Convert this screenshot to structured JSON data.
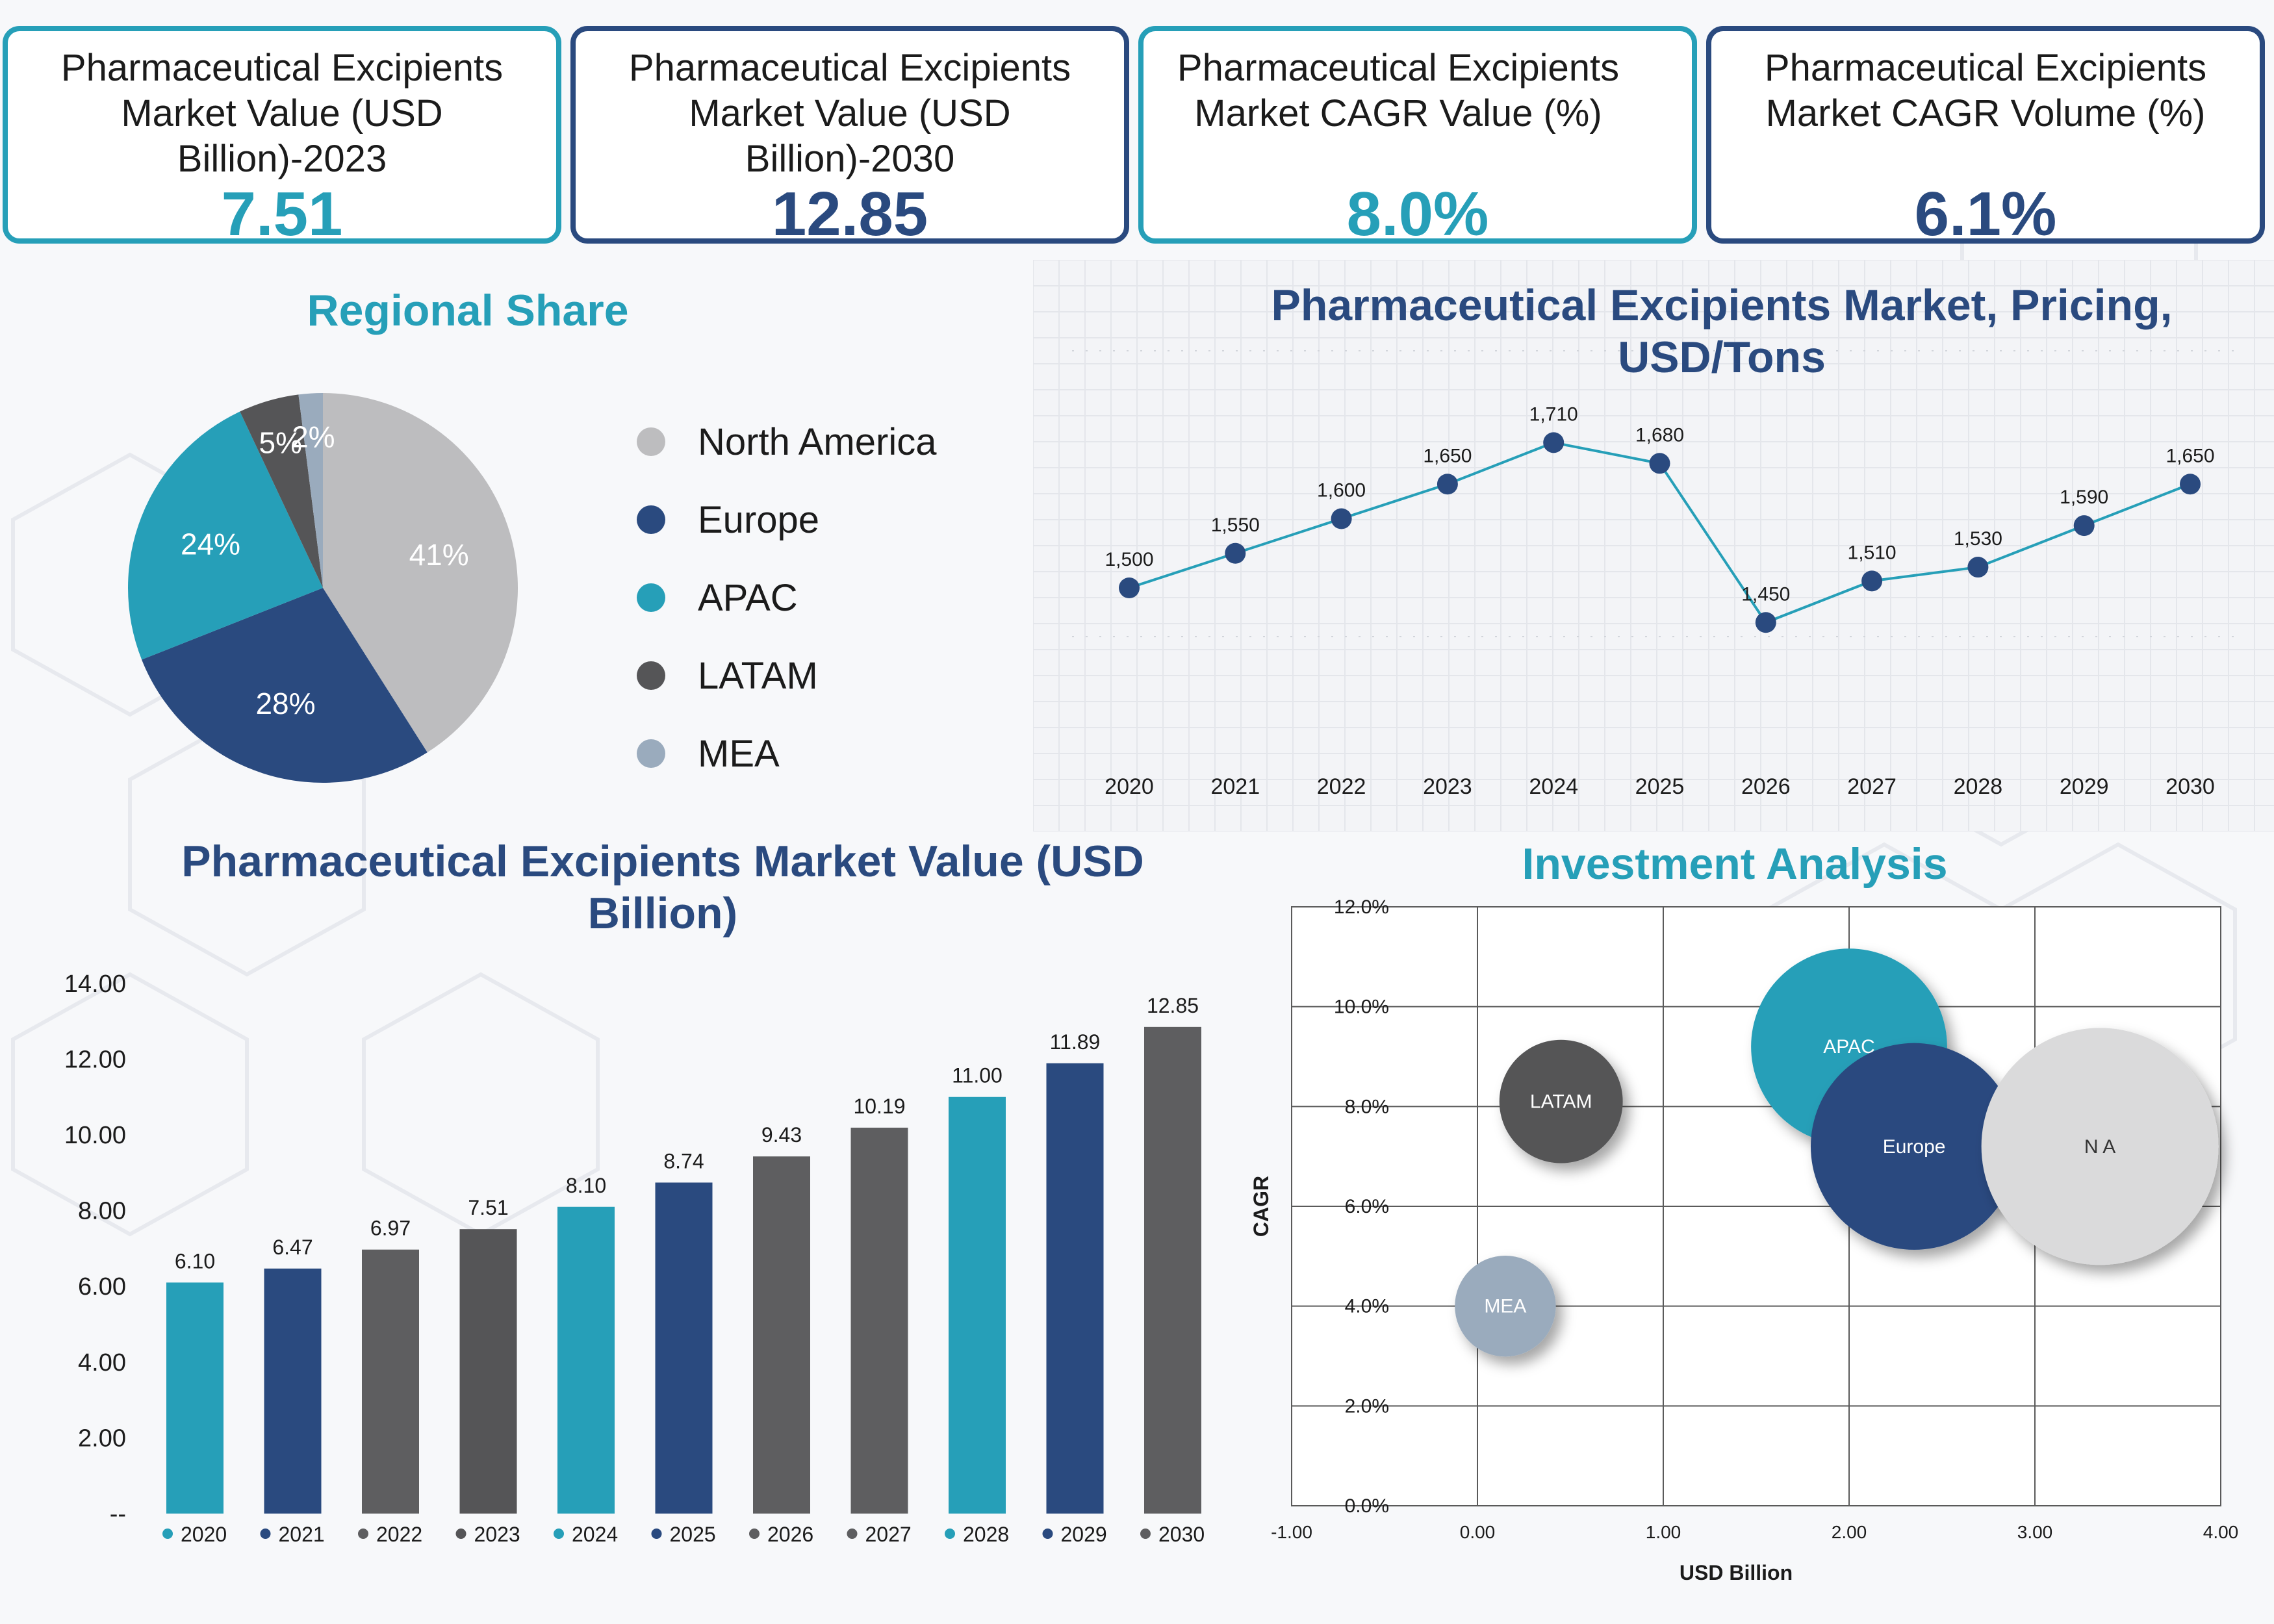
{
  "kpis": [
    {
      "title": "Pharmaceutical Excipients Market Value (USD Billion)-2023",
      "value": "7.51",
      "color": "#269fb8"
    },
    {
      "title": "Pharmaceutical Excipients Market Value (USD Billion)-2030",
      "value": "12.85",
      "color": "#2a4a7f"
    },
    {
      "title": "Pharmaceutical Excipients Market CAGR Value (%)",
      "value": "8.0%",
      "color": "#269fb8"
    },
    {
      "title": "Pharmaceutical Excipients Market CAGR Volume (%)",
      "value": "6.1%",
      "color": "#2a4a7f"
    }
  ],
  "chart_data": [
    {
      "type": "pie",
      "title": "Regional Share",
      "slices": [
        {
          "name": "North America",
          "value": 41,
          "label": "41%",
          "color": "#bdbdbf"
        },
        {
          "name": "Europe",
          "value": 28,
          "label": "28%",
          "color": "#2a4a7f"
        },
        {
          "name": "APAC",
          "value": 24,
          "label": "24%",
          "color": "#269fb8"
        },
        {
          "name": "LATAM",
          "value": 5,
          "label": "5%",
          "color": "#555557"
        },
        {
          "name": "MEA",
          "value": 2,
          "label": "2%",
          "color": "#9aabbd"
        }
      ],
      "legend_position": "right"
    },
    {
      "type": "line",
      "title": "Pharmaceutical Excipients Market, Pricing, USD/Tons",
      "x": [
        "2020",
        "2021",
        "2022",
        "2023",
        "2024",
        "2025",
        "2026",
        "2027",
        "2028",
        "2029",
        "2030"
      ],
      "values": [
        1500,
        1550,
        1600,
        1650,
        1710,
        1680,
        1450,
        1510,
        1530,
        1590,
        1650
      ],
      "labels": [
        "1,500",
        "1,550",
        "1,600",
        "1,650",
        "1,710",
        "1,680",
        "1,450",
        "1,510",
        "1,530",
        "1,590",
        "1,650"
      ],
      "line_color": "#269fb8",
      "marker_color": "#2a4a7f",
      "grid": true
    },
    {
      "type": "bar",
      "title": "Pharmaceutical Excipients Market Value (USD Billion)",
      "categories": [
        "2020",
        "2021",
        "2022",
        "2023",
        "2024",
        "2025",
        "2026",
        "2027",
        "2028",
        "2029",
        "2030"
      ],
      "values": [
        6.1,
        6.47,
        6.97,
        7.51,
        8.1,
        8.74,
        9.43,
        10.19,
        11.0,
        11.89,
        12.85
      ],
      "labels": [
        "6.10",
        "6.47",
        "6.97",
        "7.51",
        "8.10",
        "8.74",
        "9.43",
        "10.19",
        "11.00",
        "11.89",
        "12.85"
      ],
      "colors": [
        "#269fb8",
        "#2a4a7f",
        "#5e5e60",
        "#555557",
        "#269fb8",
        "#2a4a7f",
        "#5e5e60",
        "#5e5e60",
        "#269fb8",
        "#2a4a7f",
        "#5e5e60"
      ],
      "ylim": [
        0,
        14
      ],
      "yticks": [
        "--",
        "2.00",
        "4.00",
        "6.00",
        "8.00",
        "10.00",
        "12.00",
        "14.00"
      ],
      "legend_position": "bottom"
    },
    {
      "type": "bubble",
      "title": "Investment Analysis",
      "xlabel": "USD Billion",
      "ylabel": "CAGR",
      "xlim": [
        -1,
        4
      ],
      "ylim": [
        0,
        12
      ],
      "xticks": [
        "-1.00",
        "0.00",
        "1.00",
        "2.00",
        "3.00",
        "4.00"
      ],
      "yticks": [
        "0.0%",
        "2.0%",
        "4.0%",
        "6.0%",
        "8.0%",
        "10.0%",
        "12.0%"
      ],
      "points": [
        {
          "name": "LATAM",
          "x": 0.45,
          "y": 8.1,
          "size": 5,
          "color": "#555557"
        },
        {
          "name": "APAC",
          "x": 2.0,
          "y": 9.2,
          "size": 24,
          "color": "#269fb8"
        },
        {
          "name": "Europe",
          "x": 2.35,
          "y": 7.2,
          "size": 28,
          "color": "#2a4a7f"
        },
        {
          "name": "N A",
          "x": 3.35,
          "y": 7.2,
          "size": 41,
          "color": "#dadadb"
        },
        {
          "name": "MEA",
          "x": 0.15,
          "y": 4.0,
          "size": 2,
          "color": "#9aabbd"
        }
      ]
    }
  ]
}
